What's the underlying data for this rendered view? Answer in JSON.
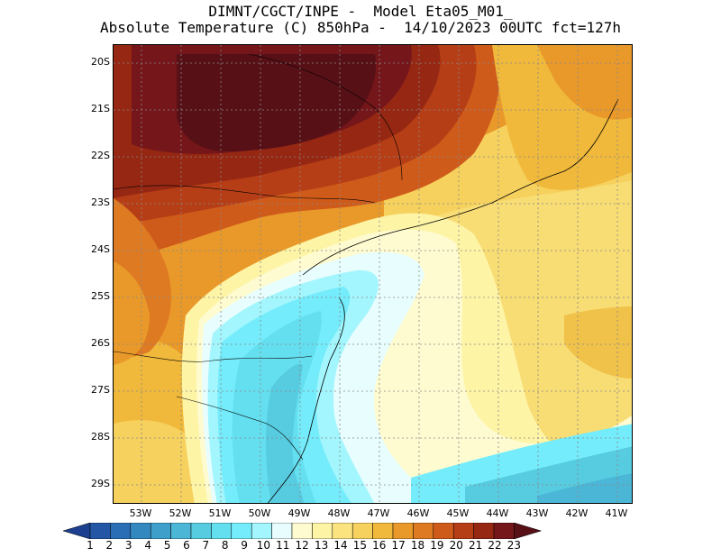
{
  "title": {
    "line1": "DIMNT/CGCT/INPE -  Model Eta05_M01_",
    "line2": "Absolute Temperature (C) 850hPa -  14/10/2023 00UTC fct=127h"
  },
  "map": {
    "lat_ticks": [
      "20S",
      "21S",
      "22S",
      "23S",
      "24S",
      "25S",
      "26S",
      "27S",
      "28S",
      "29S"
    ],
    "lon_ticks": [
      "53W",
      "52W",
      "51W",
      "50W",
      "49W",
      "48W",
      "47W",
      "46W",
      "45W",
      "44W",
      "43W",
      "42W",
      "41W"
    ],
    "grid": true,
    "field": "Absolute Temperature (C) 850hPa"
  },
  "colorbar": {
    "labels": [
      "1",
      "2",
      "3",
      "4",
      "5",
      "6",
      "7",
      "8",
      "9",
      "10",
      "11",
      "12",
      "13",
      "14",
      "15",
      "16",
      "17",
      "18",
      "19",
      "20",
      "21",
      "22",
      "23"
    ],
    "colors": [
      "#1d3f8f",
      "#2357a5",
      "#2a6fb5",
      "#3388c0",
      "#3e9fcb",
      "#4bb6d6",
      "#57cce0",
      "#64dff0",
      "#74ecfb",
      "#a3f6fd",
      "#e8fdfd",
      "#fefbd0",
      "#fdf4a6",
      "#fbe380",
      "#f6d15d",
      "#f0b93b",
      "#e9992a",
      "#de7a22",
      "#cf5b1b",
      "#b63e16",
      "#952713",
      "#74161a",
      "#561016"
    ]
  }
}
